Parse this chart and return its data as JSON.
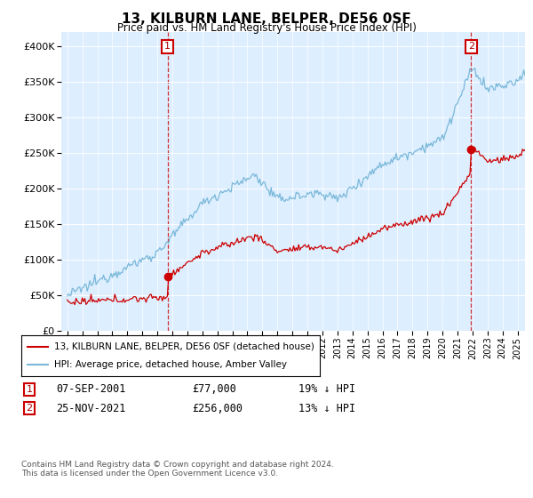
{
  "title": "13, KILBURN LANE, BELPER, DE56 0SF",
  "subtitle": "Price paid vs. HM Land Registry's House Price Index (HPI)",
  "legend_line1": "13, KILBURN LANE, BELPER, DE56 0SF (detached house)",
  "legend_line2": "HPI: Average price, detached house, Amber Valley",
  "transaction1_date": "07-SEP-2001",
  "transaction1_price": 77000,
  "transaction2_date": "25-NOV-2021",
  "transaction2_price": 256000,
  "transaction1_hpi_diff": "19% ↓ HPI",
  "transaction2_hpi_diff": "13% ↓ HPI",
  "footer": "Contains HM Land Registry data © Crown copyright and database right 2024.\nThis data is licensed under the Open Government Licence v3.0.",
  "hpi_color": "#7ab8d9",
  "price_color": "#cc0000",
  "plot_bg_color": "#ddeeff",
  "ylim": [
    0,
    420000
  ],
  "yticks": [
    0,
    50000,
    100000,
    150000,
    200000,
    250000,
    300000,
    350000,
    400000
  ],
  "xlim_start": 1994.6,
  "xlim_end": 2025.5,
  "t1_x": 2001.69,
  "t2_x": 2021.91
}
